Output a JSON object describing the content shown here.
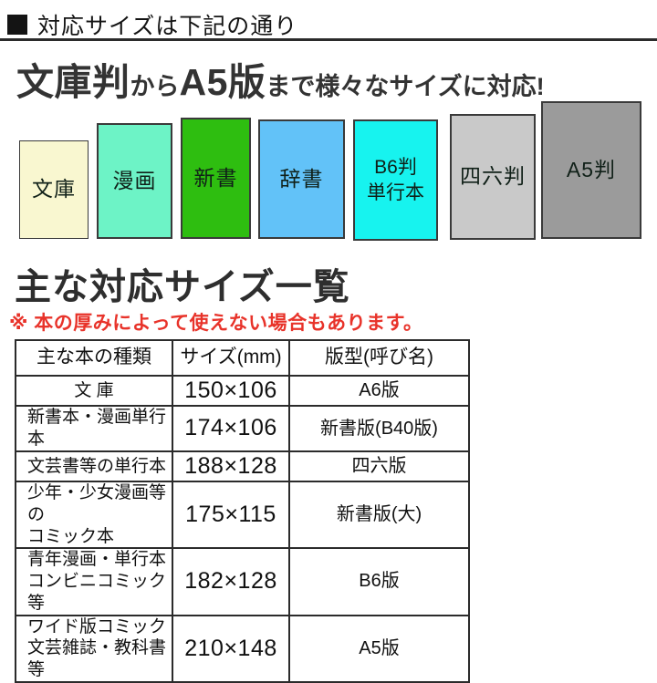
{
  "header": {
    "title": "対応サイズは下記の通り"
  },
  "headline": {
    "large1": "文庫判",
    "small1": "から",
    "large2": "A5版",
    "small2": "まで様々なサイズに対応!"
  },
  "books": [
    {
      "label": "文庫",
      "color": "#f9f7d0"
    },
    {
      "label": "漫画",
      "color": "#6df3c6"
    },
    {
      "label": "新書",
      "color": "#2ebe10"
    },
    {
      "label": "辞書",
      "color": "#62c2f8"
    },
    {
      "label": "B6判\n単行本",
      "color": "#17f3ef"
    },
    {
      "label": "四六判",
      "color": "#c9c9c9"
    },
    {
      "label": "A5判",
      "color": "#9b9b9b"
    }
  ],
  "list_title": "主な対応サイズ一覧",
  "note": "※ 本の厚みによって使えない場合もあります。",
  "colors": {
    "accent_red": "#e8332a",
    "text_dark": "#2e2e2e"
  },
  "table": {
    "headers": [
      "主な本の種類",
      "サイズ(mm)",
      "版型(呼び名)"
    ],
    "rows": [
      {
        "type": "文 庫",
        "size": "150×106",
        "format": "A6版"
      },
      {
        "type": "新書本・漫画単行本",
        "size": "174×106",
        "format": "新書版(B40版)"
      },
      {
        "type": "文芸書等の単行本",
        "size": "188×128",
        "format": "四六版"
      },
      {
        "type": "少年・少女漫画等の\nコミック本",
        "size": "175×115",
        "format": "新書版(大)"
      },
      {
        "type": "青年漫画・単行本\nコンビニコミック等",
        "size": "182×128",
        "format": "B6版"
      },
      {
        "type": "ワイド版コミック\n文芸雑誌・教科書等",
        "size": "210×148",
        "format": "A5版"
      }
    ]
  }
}
